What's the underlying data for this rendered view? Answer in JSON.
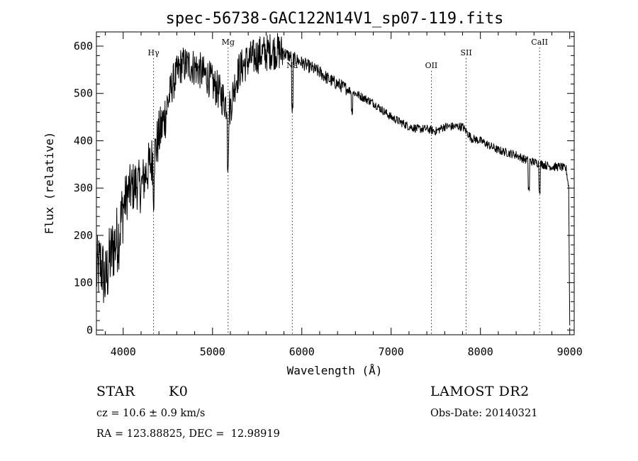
{
  "chart_data": {
    "type": "line",
    "title": "spec-56738-GAC122N14V1_sp07-119.fits",
    "xlabel": "Wavelength (Å)",
    "ylabel": "Flux (relative)",
    "xlim": [
      3700,
      9050
    ],
    "ylim": [
      -10,
      630
    ],
    "xticks": [
      4000,
      5000,
      6000,
      7000,
      8000,
      9000
    ],
    "yticks": [
      0,
      100,
      200,
      300,
      400,
      500,
      600
    ],
    "grid": false,
    "series": [
      {
        "color": "#000000",
        "x": [
          3700,
          3750,
          3800,
          3850,
          3900,
          3950,
          4000,
          4050,
          4100,
          4150,
          4200,
          4250,
          4300,
          4350,
          4400,
          4450,
          4500,
          4550,
          4600,
          4650,
          4700,
          4750,
          4800,
          4850,
          4900,
          4950,
          5000,
          5050,
          5100,
          5150,
          5200,
          5250,
          5300,
          5350,
          5400,
          5450,
          5500,
          5550,
          5600,
          5650,
          5700,
          5750,
          5800,
          5850,
          5900,
          5950,
          6000,
          6100,
          6200,
          6300,
          6400,
          6500,
          6600,
          6700,
          6800,
          6900,
          7000,
          7100,
          7200,
          7300,
          7400,
          7500,
          7600,
          7700,
          7800,
          7900,
          8000,
          8100,
          8200,
          8300,
          8400,
          8500,
          8600,
          8700,
          8800,
          8900,
          8960,
          8990,
          9000
        ],
        "y": [
          120,
          140,
          100,
          150,
          180,
          200,
          260,
          290,
          300,
          310,
          300,
          330,
          350,
          370,
          410,
          440,
          480,
          520,
          540,
          560,
          560,
          560,
          555,
          550,
          540,
          535,
          520,
          510,
          495,
          480,
          470,
          520,
          550,
          560,
          570,
          575,
          580,
          585,
          585,
          590,
          590,
          588,
          585,
          580,
          575,
          570,
          565,
          555,
          545,
          530,
          520,
          510,
          500,
          490,
          480,
          465,
          450,
          440,
          430,
          425,
          425,
          420,
          430,
          430,
          430,
          405,
          400,
          390,
          380,
          375,
          370,
          360,
          355,
          350,
          345,
          345,
          340,
          300,
          10
        ]
      }
    ],
    "line_markers": [
      {
        "label": "Hγ",
        "x": 4340
      },
      {
        "label": "Mg",
        "x": 5175
      },
      {
        "label": "Na",
        "x": 5893
      },
      {
        "label": "OII",
        "x": 7450
      },
      {
        "label": "SII",
        "x": 7840
      },
      {
        "label": "CaII",
        "x": 8662
      }
    ]
  },
  "info": {
    "object_type": "STAR",
    "subclass": "K0",
    "survey": "LAMOST DR2",
    "cz": "cz = 10.6 ± 0.9 km/s",
    "obs_date": "Obs-Date: 20140321",
    "coords": "RA = 123.88825, DEC =  12.98919"
  }
}
